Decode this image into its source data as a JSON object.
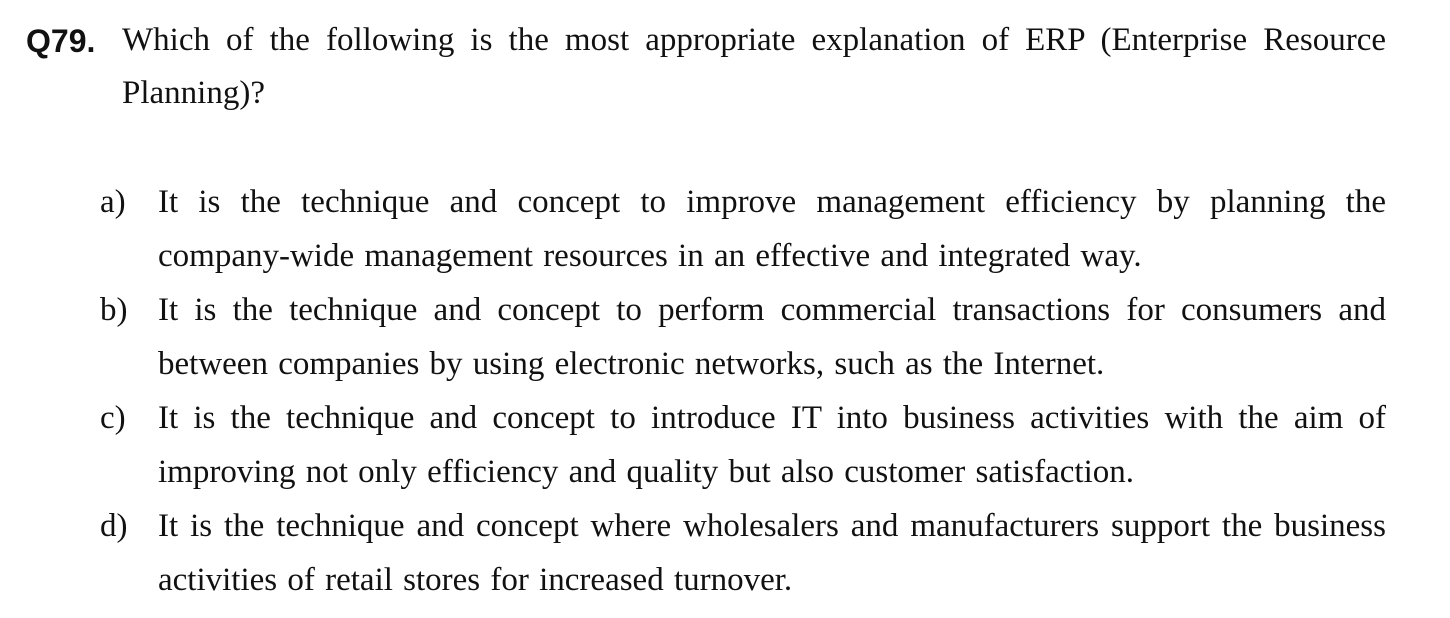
{
  "question": {
    "number": "Q79.",
    "text": "Which of the following is the most appropriate explanation of ERP (Enterprise Resource Planning)?"
  },
  "options": [
    {
      "letter": "a)",
      "text": "It is the technique and concept to improve management efficiency by planning the company-wide management resources in an effective and integrated way."
    },
    {
      "letter": "b)",
      "text": "It is the technique and concept to perform commercial transactions for consumers and between companies by using electronic networks, such as the Internet."
    },
    {
      "letter": "c)",
      "text": "It is the technique and concept to introduce IT into business activities with the aim of improving not only efficiency and quality but also customer satisfaction."
    },
    {
      "letter": "d)",
      "text": "It is the technique and concept where wholesalers and manufacturers support the business activities of retail stores for increased turnover."
    }
  ]
}
